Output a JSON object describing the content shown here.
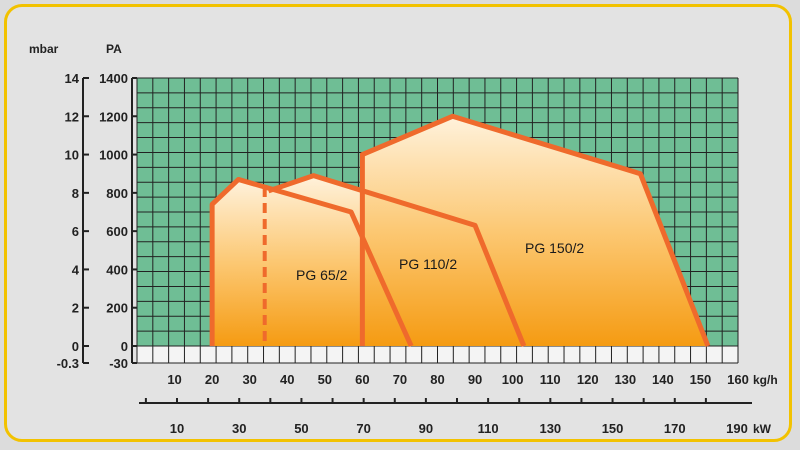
{
  "chart_data": {
    "type": "area",
    "y_axis_left_outer": {
      "unit": "mbar",
      "ticks": [
        {
          "value": 14,
          "label": "14"
        },
        {
          "value": 12,
          "label": "12"
        },
        {
          "value": 10,
          "label": "10"
        },
        {
          "value": 8,
          "label": "8"
        },
        {
          "value": 6,
          "label": "6"
        },
        {
          "value": 4,
          "label": "4"
        },
        {
          "value": 2,
          "label": "2"
        },
        {
          "value": 0,
          "label": "0"
        },
        {
          "value": -0.3,
          "label": "-0.3"
        }
      ]
    },
    "y_axis_left_inner": {
      "unit": "PA",
      "ticks": [
        {
          "value": 1400,
          "label": "1400"
        },
        {
          "value": 1200,
          "label": "1200"
        },
        {
          "value": 1000,
          "label": "1000"
        },
        {
          "value": 800,
          "label": "800"
        },
        {
          "value": 600,
          "label": "600"
        },
        {
          "value": 400,
          "label": "400"
        },
        {
          "value": 200,
          "label": "200"
        },
        {
          "value": 0,
          "label": "0"
        },
        {
          "value": -30,
          "label": "-30"
        }
      ]
    },
    "x_axis_top": {
      "unit": "kg/h",
      "ticks": [
        "10",
        "20",
        "30",
        "40",
        "50",
        "60",
        "70",
        "80",
        "90",
        "100",
        "110",
        "120",
        "130",
        "140",
        "150",
        "160"
      ]
    },
    "x_axis_bottom": {
      "unit": "kW",
      "ticks": [
        "10",
        "30",
        "50",
        "70",
        "90",
        "110",
        "130",
        "150",
        "170",
        "190"
      ]
    },
    "xlim": [
      0,
      160
    ],
    "ylim": [
      -30,
      1400
    ],
    "grid": true,
    "regions": [
      {
        "name": "PG 65/2",
        "points": [
          [
            20,
            0
          ],
          [
            20,
            740
          ],
          [
            27,
            870
          ],
          [
            57,
            700
          ],
          [
            73,
            0
          ]
        ],
        "min_output_dashed_x": 34
      },
      {
        "name": "PG 110/2",
        "points": [
          [
            35,
            810
          ],
          [
            47,
            890
          ],
          [
            90,
            630
          ],
          [
            103,
            0
          ]
        ],
        "min_output_dashed_x": 60
      },
      {
        "name": "PG 150/2",
        "points": [
          [
            60,
            0
          ],
          [
            60,
            1000
          ],
          [
            84,
            1200
          ],
          [
            134,
            900
          ],
          [
            152,
            0
          ]
        ]
      }
    ]
  }
}
